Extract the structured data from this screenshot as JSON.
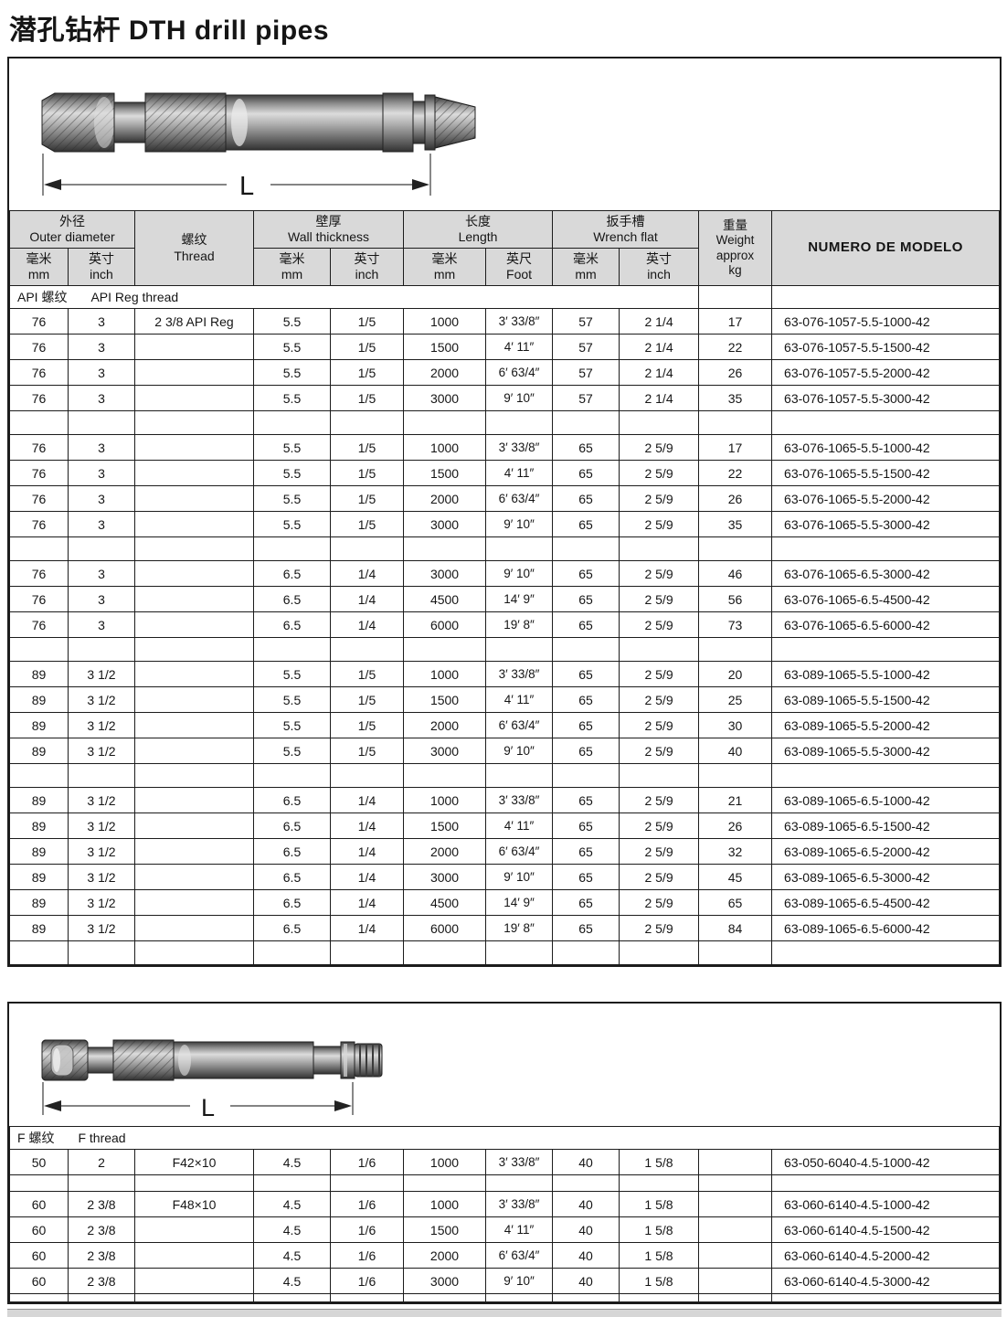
{
  "page": {
    "title": "潜孔钻杆 DTH drill pipes"
  },
  "diagram": {
    "dim_label": "L"
  },
  "header": {
    "outer_zh": "外径",
    "outer_en": "Outer diameter",
    "thread_zh": "螺纹",
    "thread_en": "Thread",
    "wall_zh": "壁厚",
    "wall_en": "Wall thickness",
    "length_zh": "长度",
    "length_en": "Length",
    "wrench_zh": "扳手槽",
    "wrench_en": "Wrench flat",
    "weight_zh": "重量",
    "weight_en": "Weight",
    "weight_approx": "approx",
    "weight_kg": "kg",
    "model": "NUMERO  DE MODELO",
    "mm_zh": "毫米",
    "mm_en": "mm",
    "inch_zh": "英寸",
    "inch_en": "inch",
    "foot_zh": "英尺",
    "foot_en": "Foot"
  },
  "sections": {
    "api_zh": "API 螺纹",
    "api_en": "API Reg thread",
    "f_zh": "F 螺纹",
    "f_en": "F thread"
  },
  "api_rows": [
    [
      "76",
      "3",
      "2 3/8 API Reg",
      "5.5",
      "1/5",
      "1000",
      "3′ 33/8″",
      "57",
      "2 1/4",
      "17",
      "63-076-1057-5.5-1000-42"
    ],
    [
      "76",
      "3",
      "",
      "5.5",
      "1/5",
      "1500",
      "4′ 11″",
      "57",
      "2 1/4",
      "22",
      "63-076-1057-5.5-1500-42"
    ],
    [
      "76",
      "3",
      "",
      "5.5",
      "1/5",
      "2000",
      "6′ 63/4″",
      "57",
      "2 1/4",
      "26",
      "63-076-1057-5.5-2000-42"
    ],
    [
      "76",
      "3",
      "",
      "5.5",
      "1/5",
      "3000",
      "9′ 10″",
      "57",
      "2 1/4",
      "35",
      "63-076-1057-5.5-3000-42"
    ],
    "SPACER",
    [
      "76",
      "3",
      "",
      "5.5",
      "1/5",
      "1000",
      "3′ 33/8″",
      "65",
      "2 5/9",
      "17",
      "63-076-1065-5.5-1000-42"
    ],
    [
      "76",
      "3",
      "",
      "5.5",
      "1/5",
      "1500",
      "4′ 11″",
      "65",
      "2 5/9",
      "22",
      "63-076-1065-5.5-1500-42"
    ],
    [
      "76",
      "3",
      "",
      "5.5",
      "1/5",
      "2000",
      "6′ 63/4″",
      "65",
      "2 5/9",
      "26",
      "63-076-1065-5.5-2000-42"
    ],
    [
      "76",
      "3",
      "",
      "5.5",
      "1/5",
      "3000",
      "9′ 10″",
      "65",
      "2 5/9",
      "35",
      "63-076-1065-5.5-3000-42"
    ],
    "SPACER",
    [
      "76",
      "3",
      "",
      "6.5",
      "1/4",
      "3000",
      "9′ 10″",
      "65",
      "2 5/9",
      "46",
      "63-076-1065-6.5-3000-42"
    ],
    [
      "76",
      "3",
      "",
      "6.5",
      "1/4",
      "4500",
      "14′ 9″",
      "65",
      "2 5/9",
      "56",
      "63-076-1065-6.5-4500-42"
    ],
    [
      "76",
      "3",
      "",
      "6.5",
      "1/4",
      "6000",
      "19′ 8″",
      "65",
      "2 5/9",
      "73",
      "63-076-1065-6.5-6000-42"
    ],
    "SPACER",
    [
      "89",
      "3 1/2",
      "",
      "5.5",
      "1/5",
      "1000",
      "3′ 33/8″",
      "65",
      "2 5/9",
      "20",
      "63-089-1065-5.5-1000-42"
    ],
    [
      "89",
      "3 1/2",
      "",
      "5.5",
      "1/5",
      "1500",
      "4′ 11″",
      "65",
      "2 5/9",
      "25",
      "63-089-1065-5.5-1500-42"
    ],
    [
      "89",
      "3 1/2",
      "",
      "5.5",
      "1/5",
      "2000",
      "6′ 63/4″",
      "65",
      "2 5/9",
      "30",
      "63-089-1065-5.5-2000-42"
    ],
    [
      "89",
      "3 1/2",
      "",
      "5.5",
      "1/5",
      "3000",
      "9′ 10″",
      "65",
      "2 5/9",
      "40",
      "63-089-1065-5.5-3000-42"
    ],
    "SPACER",
    [
      "89",
      "3 1/2",
      "",
      "6.5",
      "1/4",
      "1000",
      "3′ 33/8″",
      "65",
      "2 5/9",
      "21",
      "63-089-1065-6.5-1000-42"
    ],
    [
      "89",
      "3 1/2",
      "",
      "6.5",
      "1/4",
      "1500",
      "4′ 11″",
      "65",
      "2 5/9",
      "26",
      "63-089-1065-6.5-1500-42"
    ],
    [
      "89",
      "3 1/2",
      "",
      "6.5",
      "1/4",
      "2000",
      "6′ 63/4″",
      "65",
      "2 5/9",
      "32",
      "63-089-1065-6.5-2000-42"
    ],
    [
      "89",
      "3 1/2",
      "",
      "6.5",
      "1/4",
      "3000",
      "9′ 10″",
      "65",
      "2 5/9",
      "45",
      "63-089-1065-6.5-3000-42"
    ],
    [
      "89",
      "3 1/2",
      "",
      "6.5",
      "1/4",
      "4500",
      "14′ 9″",
      "65",
      "2 5/9",
      "65",
      "63-089-1065-6.5-4500-42"
    ],
    [
      "89",
      "3 1/2",
      "",
      "6.5",
      "1/4",
      "6000",
      "19′ 8″",
      "65",
      "2 5/9",
      "84",
      "63-089-1065-6.5-6000-42"
    ],
    "SPACER"
  ],
  "f_rows": [
    [
      "50",
      "2",
      "F42×10",
      "4.5",
      "1/6",
      "1000",
      "3′ 33/8″",
      "40",
      "1 5/8",
      "",
      "63-050-6040-4.5-1000-42"
    ],
    "SPACER",
    [
      "60",
      "2 3/8",
      "F48×10",
      "4.5",
      "1/6",
      "1000",
      "3′ 33/8″",
      "40",
      "1 5/8",
      "",
      "63-060-6140-4.5-1000-42"
    ],
    [
      "60",
      "2 3/8",
      "",
      "4.5",
      "1/6",
      "1500",
      "4′ 11″",
      "40",
      "1 5/8",
      "",
      "63-060-6140-4.5-1500-42"
    ],
    [
      "60",
      "2 3/8",
      "",
      "4.5",
      "1/6",
      "2000",
      "6′ 63/4″",
      "40",
      "1 5/8",
      "",
      "63-060-6140-4.5-2000-42"
    ],
    [
      "60",
      "2 3/8",
      "",
      "4.5",
      "1/6",
      "3000",
      "9′ 10″",
      "40",
      "1 5/8",
      "",
      "63-060-6140-4.5-3000-42"
    ],
    "FILLER"
  ],
  "colors": {
    "header_bg": "#d9d9d9",
    "border": "#1c1c1c",
    "page_bg": "#ffffff"
  }
}
